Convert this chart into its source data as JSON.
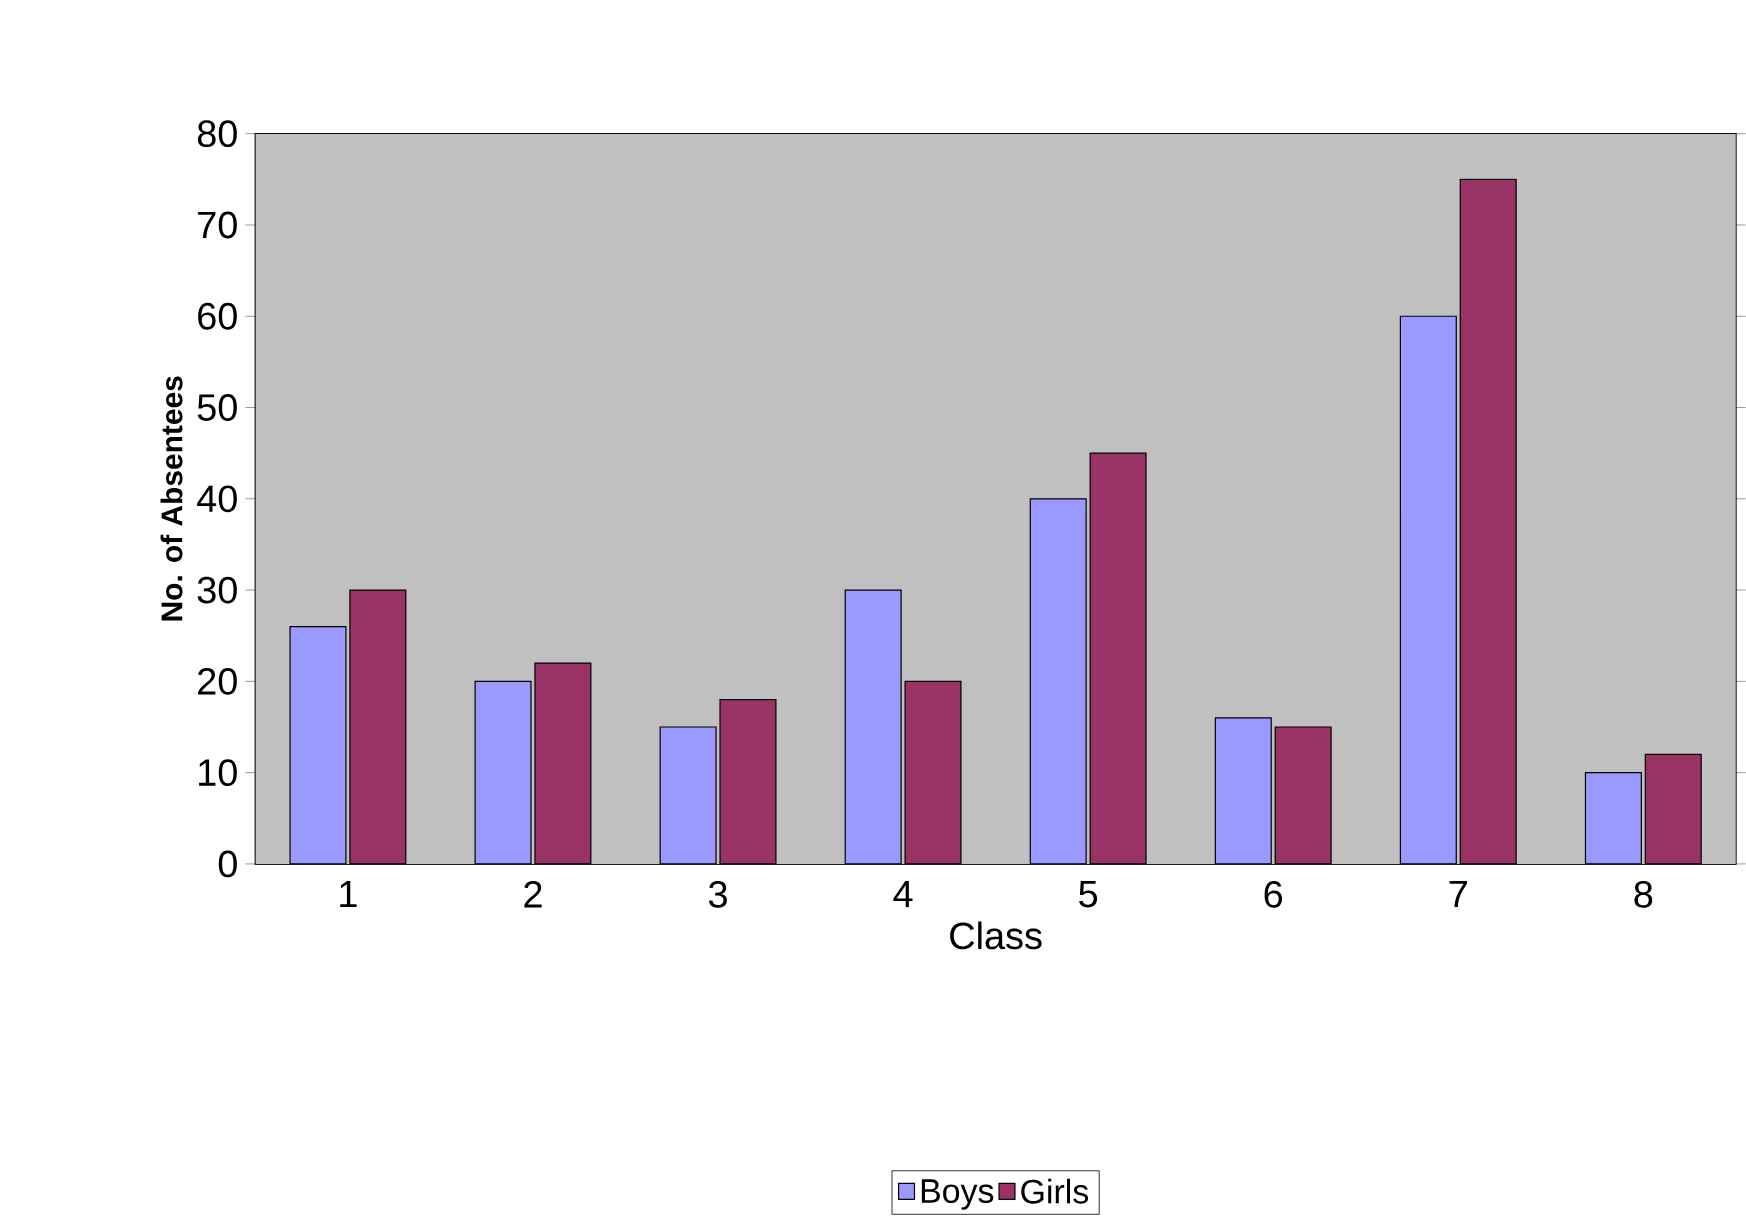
{
  "chart_data": {
    "type": "bar",
    "xlabel": "Class",
    "ylabel": "No. of Absentees",
    "categories": [
      "1",
      "2",
      "3",
      "4",
      "5",
      "6",
      "7",
      "8"
    ],
    "series": [
      {
        "name": "Boys",
        "color": "#9999ff",
        "values": [
          26,
          20,
          15,
          30,
          40,
          16,
          60,
          10
        ]
      },
      {
        "name": "Girls",
        "color": "#993366",
        "values": [
          30,
          22,
          18,
          20,
          45,
          15,
          75,
          12
        ]
      }
    ],
    "ylim": [
      0,
      80
    ],
    "yticks": [
      0,
      10,
      20,
      30,
      40,
      50,
      60,
      70,
      80
    ],
    "grid": "y",
    "legend": "bottom"
  }
}
